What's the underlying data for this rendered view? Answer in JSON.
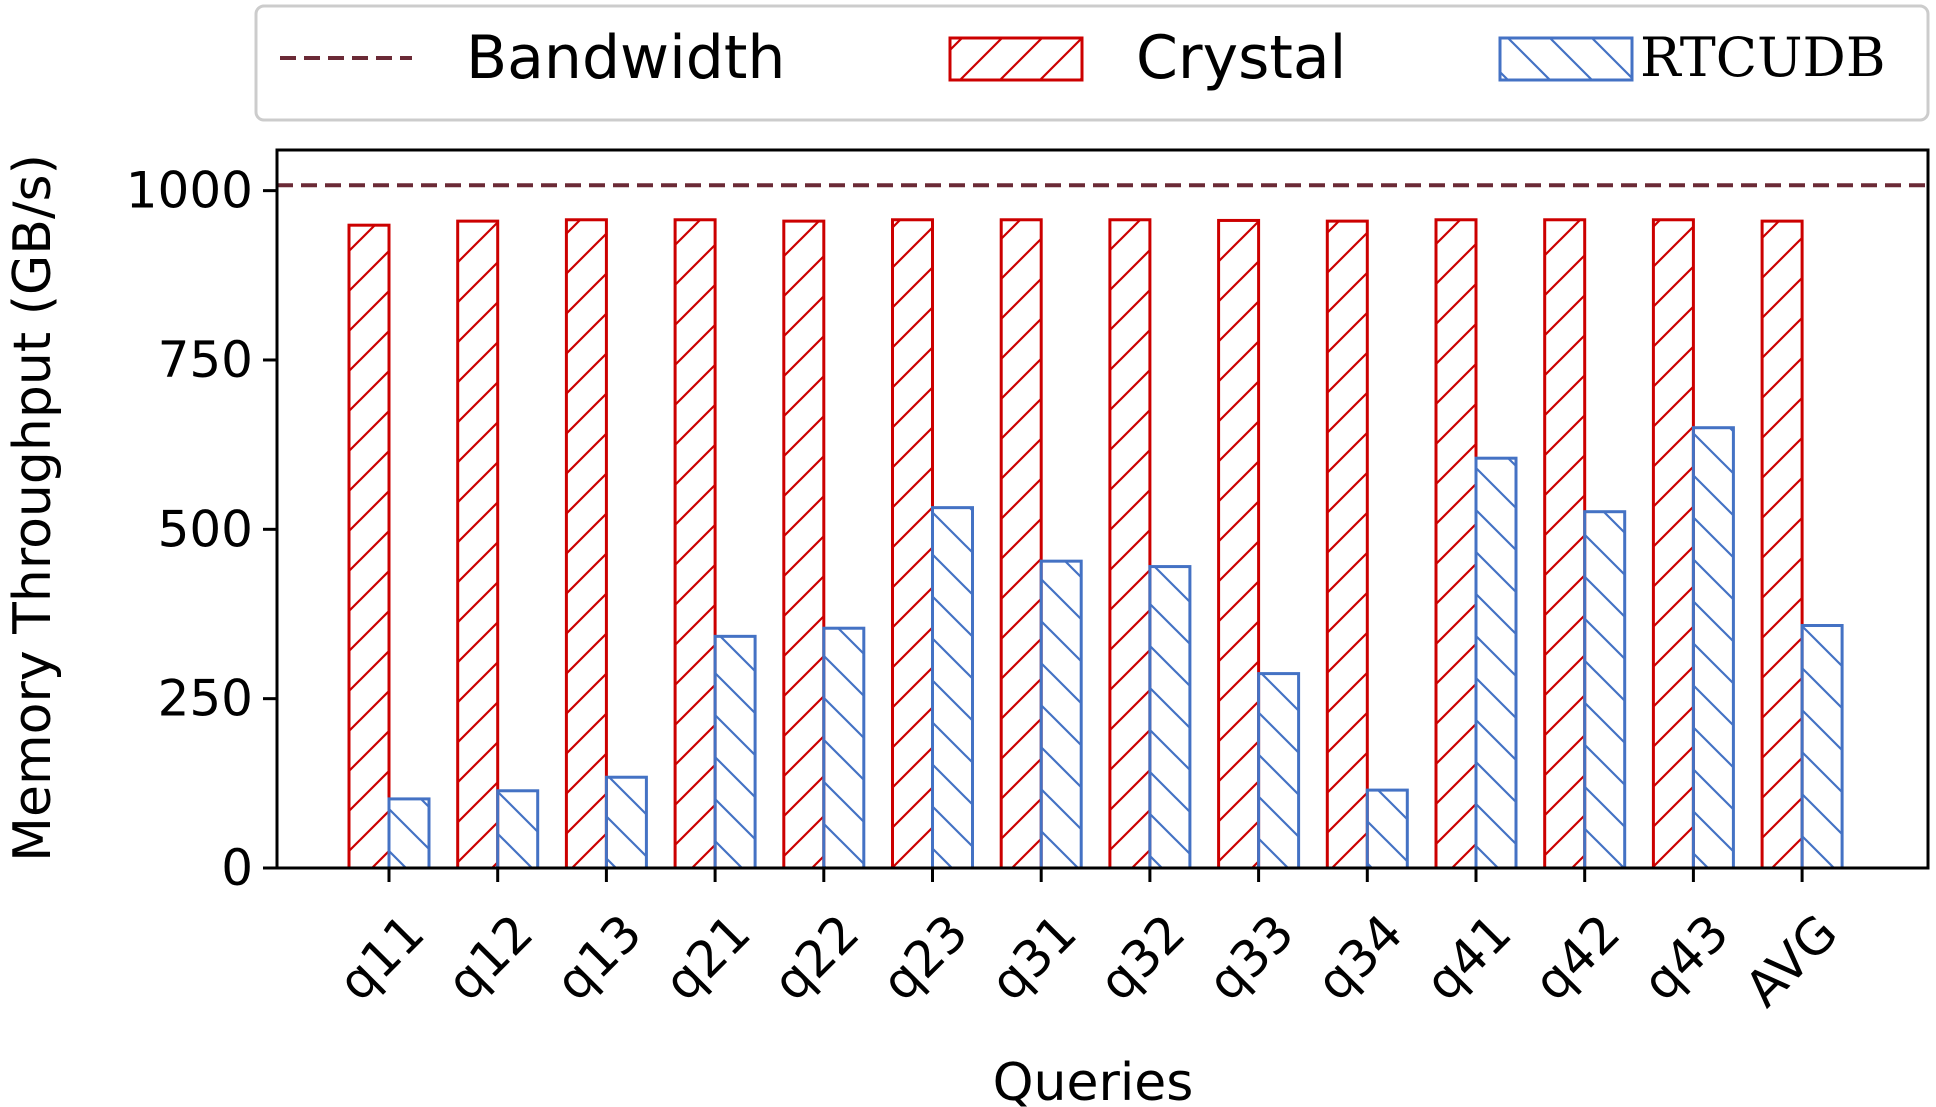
{
  "chart_data": {
    "type": "bar",
    "xlabel": "Queries",
    "ylabel": "Memory Throughput (GB/s)",
    "ylim": [
      0,
      1060
    ],
    "yticks": [
      0,
      250,
      500,
      750,
      1000
    ],
    "categories": [
      "q11",
      "q12",
      "q13",
      "q21",
      "q22",
      "q23",
      "q31",
      "q32",
      "q33",
      "q34",
      "q41",
      "q42",
      "q43",
      "AVG"
    ],
    "series": [
      {
        "name": "Crystal",
        "color": "#cc0000",
        "hatch": "forward-diagonal",
        "values": [
          949,
          955,
          957,
          957,
          955,
          957,
          957,
          957,
          956,
          955,
          957,
          957,
          957,
          955
        ]
      },
      {
        "name": "RTCUDB",
        "color": "#4472c4",
        "hatch": "back-diagonal",
        "values": [
          102,
          114,
          134,
          342,
          354,
          532,
          453,
          445,
          287,
          115,
          605,
          526,
          650,
          358
        ]
      }
    ],
    "reference_line": {
      "name": "Bandwidth",
      "value": 1008,
      "color": "#6b2a36",
      "style": "dashed"
    },
    "grid": false,
    "legend_position": "top"
  }
}
